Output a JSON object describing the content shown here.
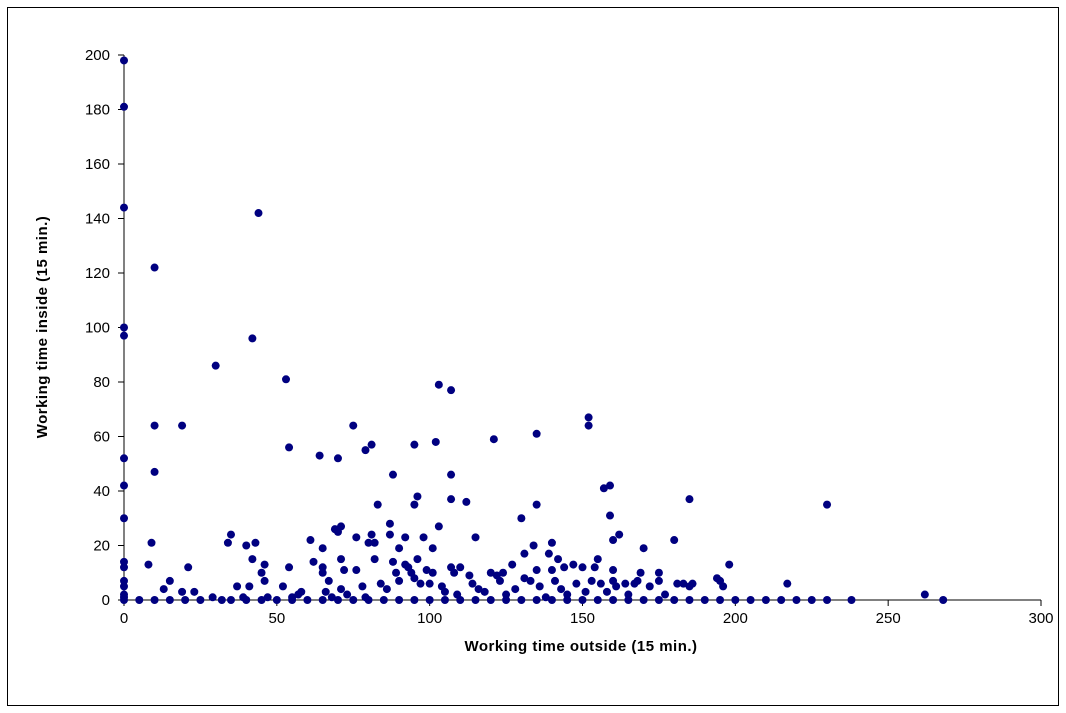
{
  "chart_data": {
    "type": "scatter",
    "title": "",
    "xlabel": "Working time outside (15 min.)",
    "ylabel": "Working time inside (15 min.)",
    "xlim": [
      0,
      300
    ],
    "ylim": [
      0,
      200
    ],
    "xticks": [
      "0",
      "50",
      "100",
      "150",
      "200",
      "250",
      "300"
    ],
    "yticks": [
      "0",
      "20",
      "40",
      "60",
      "80",
      "100",
      "120",
      "140",
      "160",
      "180",
      "200"
    ],
    "grid": false,
    "legend": "none",
    "marker_color": "#000080",
    "series": [
      {
        "points": [
          [
            0,
            198
          ],
          [
            0,
            181
          ],
          [
            0,
            144
          ],
          [
            0,
            100
          ],
          [
            0,
            97
          ],
          [
            0,
            52
          ],
          [
            0,
            42
          ],
          [
            0,
            30
          ],
          [
            0,
            14
          ],
          [
            0,
            12
          ],
          [
            0,
            7
          ],
          [
            0,
            5
          ],
          [
            0,
            2
          ],
          [
            0,
            1
          ],
          [
            0,
            0
          ],
          [
            8,
            13
          ],
          [
            9,
            21
          ],
          [
            10,
            122
          ],
          [
            10,
            64
          ],
          [
            10,
            47
          ],
          [
            13,
            4
          ],
          [
            15,
            7
          ],
          [
            19,
            64
          ],
          [
            19,
            3
          ],
          [
            21,
            12
          ],
          [
            23,
            3
          ],
          [
            29,
            1
          ],
          [
            30,
            86
          ],
          [
            32,
            0
          ],
          [
            34,
            21
          ],
          [
            35,
            24
          ],
          [
            37,
            5
          ],
          [
            39,
            1
          ],
          [
            40,
            20
          ],
          [
            41,
            5
          ],
          [
            42,
            96
          ],
          [
            42,
            15
          ],
          [
            43,
            21
          ],
          [
            44,
            142
          ],
          [
            45,
            10
          ],
          [
            46,
            13
          ],
          [
            46,
            7
          ],
          [
            47,
            1
          ],
          [
            50,
            0
          ],
          [
            52,
            5
          ],
          [
            53,
            81
          ],
          [
            54,
            56
          ],
          [
            54,
            12
          ],
          [
            55,
            1
          ],
          [
            57,
            2
          ],
          [
            58,
            3
          ],
          [
            61,
            22
          ],
          [
            62,
            14
          ],
          [
            64,
            53
          ],
          [
            65,
            19
          ],
          [
            65,
            12
          ],
          [
            65,
            10
          ],
          [
            66,
            3
          ],
          [
            67,
            7
          ],
          [
            68,
            1
          ],
          [
            69,
            26
          ],
          [
            70,
            52
          ],
          [
            70,
            25
          ],
          [
            71,
            27
          ],
          [
            71,
            15
          ],
          [
            71,
            4
          ],
          [
            72,
            11
          ],
          [
            73,
            2
          ],
          [
            75,
            64
          ],
          [
            76,
            23
          ],
          [
            76,
            11
          ],
          [
            78,
            5
          ],
          [
            79,
            55
          ],
          [
            79,
            1
          ],
          [
            80,
            21
          ],
          [
            81,
            57
          ],
          [
            81,
            24
          ],
          [
            82,
            21
          ],
          [
            82,
            15
          ],
          [
            83,
            35
          ],
          [
            84,
            6
          ],
          [
            86,
            4
          ],
          [
            87,
            28
          ],
          [
            87,
            24
          ],
          [
            88,
            46
          ],
          [
            88,
            14
          ],
          [
            89,
            10
          ],
          [
            90,
            19
          ],
          [
            90,
            7
          ],
          [
            92,
            23
          ],
          [
            92,
            13
          ],
          [
            93,
            12
          ],
          [
            94,
            10
          ],
          [
            95,
            57
          ],
          [
            95,
            35
          ],
          [
            95,
            8
          ],
          [
            96,
            38
          ],
          [
            96,
            15
          ],
          [
            97,
            6
          ],
          [
            98,
            23
          ],
          [
            99,
            11
          ],
          [
            100,
            6
          ],
          [
            101,
            19
          ],
          [
            101,
            10
          ],
          [
            102,
            58
          ],
          [
            103,
            27
          ],
          [
            103,
            79
          ],
          [
            104,
            5
          ],
          [
            105,
            3
          ],
          [
            107,
            37
          ],
          [
            107,
            46
          ],
          [
            107,
            77
          ],
          [
            107,
            12
          ],
          [
            108,
            10
          ],
          [
            109,
            2
          ],
          [
            110,
            12
          ],
          [
            112,
            36
          ],
          [
            113,
            9
          ],
          [
            114,
            6
          ],
          [
            115,
            23
          ],
          [
            116,
            4
          ],
          [
            118,
            3
          ],
          [
            120,
            10
          ],
          [
            121,
            59
          ],
          [
            122,
            9
          ],
          [
            123,
            7
          ],
          [
            124,
            10
          ],
          [
            125,
            2
          ],
          [
            127,
            13
          ],
          [
            128,
            4
          ],
          [
            130,
            30
          ],
          [
            131,
            8
          ],
          [
            131,
            17
          ],
          [
            133,
            7
          ],
          [
            134,
            20
          ],
          [
            135,
            61
          ],
          [
            135,
            35
          ],
          [
            135,
            11
          ],
          [
            136,
            5
          ],
          [
            138,
            1
          ],
          [
            139,
            17
          ],
          [
            140,
            21
          ],
          [
            140,
            11
          ],
          [
            141,
            7
          ],
          [
            142,
            15
          ],
          [
            143,
            4
          ],
          [
            144,
            12
          ],
          [
            145,
            2
          ],
          [
            147,
            13
          ],
          [
            148,
            6
          ],
          [
            150,
            12
          ],
          [
            151,
            3
          ],
          [
            152,
            64
          ],
          [
            152,
            67
          ],
          [
            153,
            7
          ],
          [
            154,
            12
          ],
          [
            155,
            15
          ],
          [
            156,
            6
          ],
          [
            157,
            41
          ],
          [
            158,
            3
          ],
          [
            159,
            42
          ],
          [
            159,
            31
          ],
          [
            160,
            22
          ],
          [
            160,
            11
          ],
          [
            160,
            7
          ],
          [
            161,
            5
          ],
          [
            162,
            24
          ],
          [
            164,
            6
          ],
          [
            165,
            2
          ],
          [
            167,
            6
          ],
          [
            168,
            7
          ],
          [
            169,
            10
          ],
          [
            170,
            19
          ],
          [
            172,
            5
          ],
          [
            175,
            10
          ],
          [
            175,
            7
          ],
          [
            177,
            2
          ],
          [
            180,
            22
          ],
          [
            181,
            6
          ],
          [
            183,
            6
          ],
          [
            185,
            5
          ],
          [
            185,
            37
          ],
          [
            186,
            6
          ],
          [
            194,
            8
          ],
          [
            195,
            7
          ],
          [
            196,
            5
          ],
          [
            198,
            13
          ],
          [
            200,
            0
          ],
          [
            210,
            0
          ],
          [
            217,
            6
          ],
          [
            220,
            0
          ],
          [
            225,
            0
          ],
          [
            230,
            35
          ],
          [
            230,
            0
          ],
          [
            238,
            0
          ],
          [
            262,
            2
          ],
          [
            268,
            0
          ],
          [
            5,
            0
          ],
          [
            10,
            0
          ],
          [
            15,
            0
          ],
          [
            20,
            0
          ],
          [
            25,
            0
          ],
          [
            35,
            0
          ],
          [
            40,
            0
          ],
          [
            45,
            0
          ],
          [
            55,
            0
          ],
          [
            60,
            0
          ],
          [
            65,
            0
          ],
          [
            70,
            0
          ],
          [
            75,
            0
          ],
          [
            80,
            0
          ],
          [
            85,
            0
          ],
          [
            90,
            0
          ],
          [
            95,
            0
          ],
          [
            100,
            0
          ],
          [
            105,
            0
          ],
          [
            110,
            0
          ],
          [
            115,
            0
          ],
          [
            120,
            0
          ],
          [
            125,
            0
          ],
          [
            130,
            0
          ],
          [
            135,
            0
          ],
          [
            140,
            0
          ],
          [
            145,
            0
          ],
          [
            150,
            0
          ],
          [
            155,
            0
          ],
          [
            160,
            0
          ],
          [
            165,
            0
          ],
          [
            170,
            0
          ],
          [
            175,
            0
          ],
          [
            180,
            0
          ],
          [
            185,
            0
          ],
          [
            190,
            0
          ],
          [
            195,
            0
          ],
          [
            205,
            0
          ],
          [
            215,
            0
          ]
        ]
      }
    ]
  }
}
